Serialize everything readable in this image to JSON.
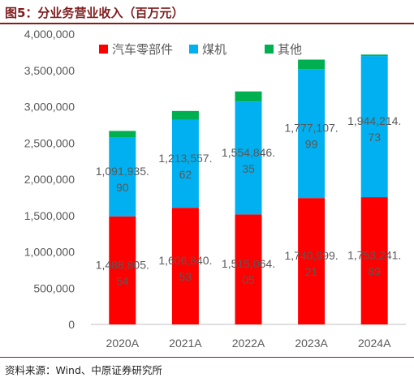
{
  "figure": {
    "title": "图5：分业务营业收入（百万元）",
    "source": "资料来源：Wind、中原证券研究所"
  },
  "chart_data": {
    "type": "bar",
    "stacked": true,
    "categories": [
      "2020A",
      "2021A",
      "2022A",
      "2023A",
      "2024A"
    ],
    "series": [
      {
        "name": "汽车零部件",
        "color": "#ff0000",
        "values": [
          1488805.54,
          1606840.53,
          1515064.05,
          1740999.21,
          1753241.89
        ],
        "labels": [
          [
            "1,488,805.",
            "54"
          ],
          [
            "1,606,840.",
            "53"
          ],
          [
            "1,515,064.",
            "05"
          ],
          [
            "1,740,999.",
            "21"
          ],
          [
            "1,753,241.",
            "89"
          ]
        ]
      },
      {
        "name": "煤机",
        "color": "#00b0f0",
        "values": [
          1091935.9,
          1213557.62,
          1554846.35,
          1777107.99,
          1944214.73
        ],
        "labels": [
          [
            "1,091,935.",
            "90"
          ],
          [
            "1,213,557.",
            "62"
          ],
          [
            "1,554,846.",
            "35"
          ],
          [
            "1,777,107.",
            "99"
          ],
          [
            "1,944,214.",
            "73"
          ]
        ]
      },
      {
        "name": "其他",
        "color": "#00b050",
        "values": [
          85000,
          120000,
          140000,
          130000,
          20000
        ]
      }
    ],
    "yticks": [
      "0",
      "500,000",
      "1,000,000",
      "1,500,000",
      "2,000,000",
      "2,500,000",
      "3,000,000",
      "3,500,000",
      "4,000,000"
    ],
    "ylim": [
      0,
      4000000
    ],
    "grid": false,
    "legend": "top"
  }
}
